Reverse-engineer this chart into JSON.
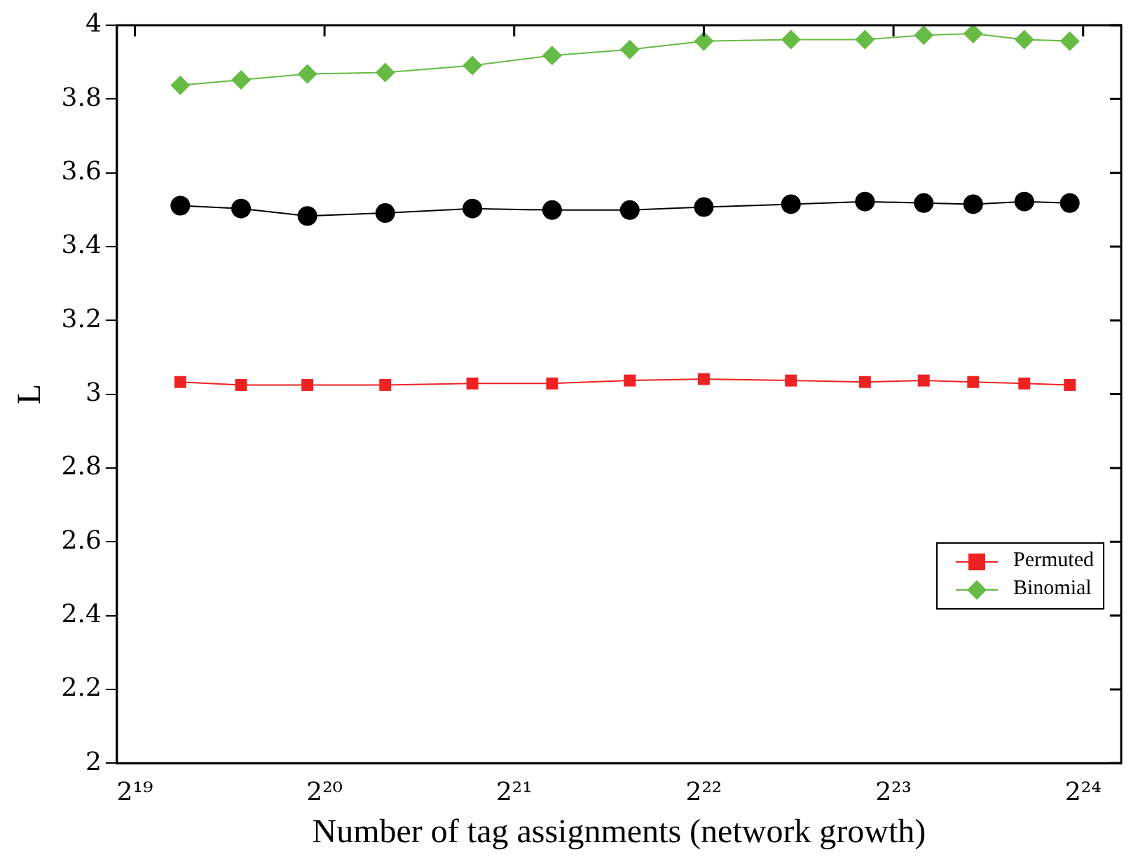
{
  "chart_data": {
    "type": "line",
    "xlabel": "Number of tag assignments (network growth)",
    "ylabel": "L",
    "log": "x",
    "xlim": [
      491000,
      19280000
    ],
    "xticks": [
      {
        "value": 524288,
        "label": "2¹⁹"
      },
      {
        "value": 1048576,
        "label": "2²⁰"
      },
      {
        "value": 2097152,
        "label": "2²¹"
      },
      {
        "value": 4194304,
        "label": "2²²"
      },
      {
        "value": 8388608,
        "label": "2²³"
      },
      {
        "value": 16777216,
        "label": "2²⁴"
      }
    ],
    "ylim": [
      2,
      4
    ],
    "yticks": [
      2,
      2.2,
      2.4,
      2.6,
      2.8,
      3,
      3.2,
      3.4,
      3.6,
      3.8,
      4
    ],
    "x": [
      619000,
      773000,
      985000,
      1309000,
      1800000,
      2409000,
      3200000,
      4194304,
      5767000,
      7558000,
      9370000,
      11224000,
      13531000,
      15980000
    ],
    "grid": false,
    "legend": "bottom right",
    "line_style": "solid",
    "series": [
      {
        "color": "#000000",
        "marker": "circle",
        "values": [
          3.511,
          3.503,
          3.483,
          3.491,
          3.503,
          3.499,
          3.499,
          3.507,
          3.515,
          3.522,
          3.518,
          3.515,
          3.522,
          3.518
        ]
      },
      {
        "name": "Permuted",
        "color": "#ee2222",
        "marker": "square",
        "values": [
          3.033,
          3.025,
          3.025,
          3.025,
          3.029,
          3.029,
          3.037,
          3.041,
          3.037,
          3.033,
          3.037,
          3.033,
          3.029,
          3.025
        ]
      },
      {
        "name": "Binomial",
        "color": "#66bb44",
        "marker": "diamond",
        "values": [
          3.837,
          3.852,
          3.868,
          3.872,
          3.891,
          3.918,
          3.934,
          3.957,
          3.961,
          3.961,
          3.973,
          3.977,
          3.961,
          3.957
        ]
      }
    ]
  }
}
